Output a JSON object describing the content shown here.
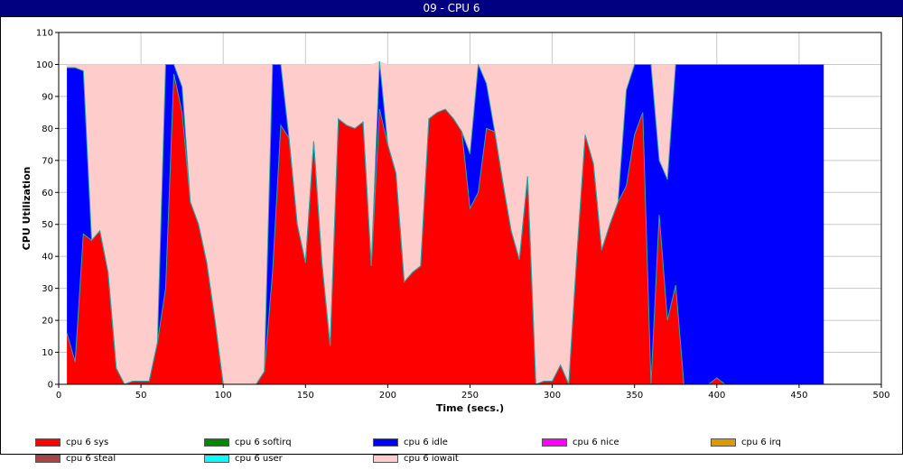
{
  "window": {
    "title": "09 - CPU 6"
  },
  "chart_data": {
    "type": "area",
    "stacked": true,
    "title": "",
    "xlabel": "Time (secs.)",
    "ylabel": "CPU Utilization",
    "xlim": [
      0,
      500
    ],
    "ylim": [
      0,
      110
    ],
    "xticks": [
      0,
      50,
      100,
      150,
      200,
      250,
      300,
      350,
      400,
      450,
      500
    ],
    "yticks": [
      0,
      10,
      20,
      30,
      40,
      50,
      60,
      70,
      80,
      90,
      100,
      110
    ],
    "grid": true,
    "x": [
      5,
      10,
      15,
      20,
      25,
      30,
      35,
      40,
      45,
      50,
      55,
      60,
      65,
      70,
      75,
      80,
      85,
      90,
      95,
      100,
      105,
      110,
      115,
      120,
      125,
      130,
      135,
      140,
      145,
      150,
      155,
      160,
      165,
      170,
      175,
      180,
      185,
      190,
      195,
      200,
      205,
      210,
      215,
      220,
      225,
      230,
      235,
      240,
      245,
      250,
      255,
      260,
      265,
      270,
      275,
      280,
      285,
      290,
      295,
      300,
      305,
      310,
      315,
      320,
      325,
      330,
      335,
      340,
      345,
      350,
      355,
      360,
      365,
      370,
      375,
      380,
      385,
      390,
      395,
      400,
      405,
      410,
      415,
      420,
      425,
      430,
      435,
      440,
      445,
      450,
      455,
      460,
      465
    ],
    "series": [
      {
        "name": "cpu 6 sys",
        "color": "#ff0000",
        "values": [
          16,
          7,
          47,
          45,
          48,
          35,
          5,
          0,
          1,
          1,
          1,
          13,
          30,
          97,
          85,
          57,
          50,
          38,
          20,
          0,
          0,
          0,
          0,
          0,
          4,
          35,
          81,
          77,
          50,
          38,
          76,
          38,
          12,
          83,
          81,
          80,
          82,
          37,
          86,
          75,
          66,
          32,
          35,
          37,
          83,
          85,
          86,
          83,
          79,
          55,
          60,
          80,
          79,
          63,
          48,
          39,
          65,
          0,
          1,
          1,
          6,
          0,
          41,
          78,
          69,
          42,
          50,
          57,
          62,
          78,
          85,
          0,
          53,
          20,
          31,
          0,
          0,
          0,
          0,
          2,
          0,
          0,
          0,
          0,
          0,
          0,
          0,
          0,
          0,
          0,
          0,
          0,
          0
        ]
      },
      {
        "name": "cpu 6 softirq",
        "color": "#008800",
        "values": [
          0,
          0,
          0,
          0,
          0,
          0,
          0,
          0,
          0,
          0,
          0,
          0,
          0,
          0,
          0,
          0,
          0,
          0,
          0,
          0,
          0,
          0,
          0,
          0,
          0,
          0,
          0,
          0,
          0,
          0,
          0,
          0,
          0,
          0,
          0,
          0,
          0,
          0,
          0,
          0,
          0,
          0,
          0,
          0,
          0,
          0,
          0,
          0,
          0,
          0,
          0,
          0,
          0,
          0,
          0,
          0,
          0,
          0,
          0,
          0,
          0,
          0,
          0,
          0,
          0,
          0,
          0,
          0,
          0,
          0,
          0,
          0,
          0,
          0,
          0,
          0,
          0,
          0,
          0,
          0,
          0,
          0,
          0,
          0,
          0,
          0,
          0,
          0,
          0,
          0,
          0,
          0,
          0
        ]
      },
      {
        "name": "cpu 6 idle",
        "color": "#0000ff",
        "values": [
          83,
          92,
          51,
          0,
          0,
          0,
          0,
          0,
          0,
          0,
          0,
          0,
          70,
          3,
          8,
          0,
          0,
          0,
          0,
          0,
          0,
          0,
          0,
          0,
          0,
          65,
          19,
          0,
          0,
          0,
          0,
          0,
          0,
          0,
          0,
          0,
          0,
          0,
          15,
          0,
          0,
          0,
          0,
          0,
          0,
          0,
          0,
          0,
          0,
          17,
          40,
          14,
          0,
          0,
          0,
          0,
          0,
          0,
          0,
          0,
          0,
          0,
          0,
          0,
          0,
          0,
          0,
          0,
          30,
          22,
          15,
          100,
          17,
          44,
          69,
          100,
          100,
          100,
          100,
          98,
          100,
          100,
          100,
          100,
          100,
          100,
          100,
          100,
          100,
          100,
          100,
          100,
          100
        ]
      },
      {
        "name": "cpu 6 nice",
        "color": "#ff00ff",
        "values": [
          0,
          0,
          0,
          0,
          0,
          0,
          0,
          0,
          0,
          0,
          0,
          0,
          0,
          0,
          0,
          0,
          0,
          0,
          0,
          0,
          0,
          0,
          0,
          0,
          0,
          0,
          0,
          0,
          0,
          0,
          0,
          0,
          0,
          0,
          0,
          0,
          0,
          0,
          0,
          0,
          0,
          0,
          0,
          0,
          0,
          0,
          0,
          0,
          0,
          0,
          0,
          0,
          0,
          0,
          0,
          0,
          0,
          0,
          0,
          0,
          0,
          0,
          0,
          0,
          0,
          0,
          0,
          0,
          0,
          0,
          0,
          0,
          0,
          0,
          0,
          0,
          0,
          0,
          0,
          0,
          0,
          0,
          0,
          0,
          0,
          0,
          0,
          0,
          0,
          0,
          0,
          0,
          0
        ]
      },
      {
        "name": "cpu 6 irq",
        "color": "#dd9900",
        "values": [
          0,
          0,
          0,
          0,
          0,
          0,
          0,
          0,
          0,
          0,
          0,
          0,
          0,
          0,
          0,
          0,
          0,
          0,
          0,
          0,
          0,
          0,
          0,
          0,
          0,
          0,
          0,
          0,
          0,
          0,
          0,
          0,
          0,
          0,
          0,
          0,
          0,
          0,
          0,
          0,
          0,
          0,
          0,
          0,
          0,
          0,
          0,
          0,
          0,
          0,
          0,
          0,
          0,
          0,
          0,
          0,
          0,
          0,
          0,
          0,
          0,
          0,
          0,
          0,
          0,
          0,
          0,
          0,
          0,
          0,
          0,
          0,
          0,
          0,
          0,
          0,
          0,
          0,
          0,
          0,
          0,
          0,
          0,
          0,
          0,
          0,
          0,
          0,
          0,
          0,
          0,
          0,
          0
        ]
      },
      {
        "name": "cpu 6 steal",
        "color": "#aa4444",
        "values": [
          0,
          0,
          0,
          0,
          0,
          0,
          0,
          0,
          0,
          0,
          0,
          0,
          0,
          0,
          0,
          0,
          0,
          0,
          0,
          0,
          0,
          0,
          0,
          0,
          0,
          0,
          0,
          0,
          0,
          0,
          0,
          0,
          0,
          0,
          0,
          0,
          0,
          0,
          0,
          0,
          0,
          0,
          0,
          0,
          0,
          0,
          0,
          0,
          0,
          0,
          0,
          0,
          0,
          0,
          0,
          0,
          0,
          0,
          0,
          0,
          0,
          0,
          0,
          0,
          0,
          0,
          0,
          0,
          0,
          0,
          0,
          0,
          0,
          0,
          0,
          0,
          0,
          0,
          0,
          0,
          0,
          0,
          0,
          0,
          0,
          0,
          0,
          0,
          0,
          0,
          0,
          0,
          0
        ]
      },
      {
        "name": "cpu 6 user",
        "color": "#00ffff",
        "values": [
          0,
          0,
          0,
          0,
          0,
          0,
          0,
          0,
          0,
          0,
          0,
          0,
          0,
          0,
          0,
          0,
          0,
          0,
          0,
          0,
          0,
          0,
          0,
          0,
          0,
          0,
          0,
          0,
          0,
          0,
          0,
          0,
          0,
          0,
          0,
          0,
          0,
          0,
          0,
          0,
          0,
          0,
          0,
          0,
          0,
          0,
          0,
          0,
          0,
          0,
          0,
          0,
          0,
          0,
          0,
          0,
          0,
          0,
          0,
          0,
          0,
          0,
          0,
          0,
          0,
          0,
          0,
          0,
          0,
          0,
          0,
          0,
          0,
          0,
          0,
          0,
          0,
          0,
          0,
          0,
          0,
          0,
          0,
          0,
          0,
          0,
          0,
          0,
          0,
          0,
          0,
          0,
          0
        ]
      },
      {
        "name": "cpu 6 iowait",
        "color": "#ffcccc",
        "values": [
          1,
          1,
          2,
          55,
          52,
          65,
          95,
          100,
          99,
          99,
          99,
          87,
          0,
          0,
          7,
          43,
          50,
          62,
          80,
          100,
          100,
          100,
          100,
          100,
          96,
          0,
          0,
          23,
          50,
          62,
          24,
          62,
          88,
          17,
          19,
          20,
          18,
          63,
          0,
          25,
          34,
          68,
          65,
          63,
          17,
          15,
          14,
          17,
          21,
          28,
          0,
          6,
          21,
          37,
          52,
          61,
          35,
          100,
          99,
          99,
          94,
          100,
          59,
          22,
          31,
          58,
          50,
          43,
          8,
          0,
          0,
          0,
          30,
          36,
          0,
          0,
          0,
          0,
          0,
          0,
          0,
          0,
          0,
          0,
          0,
          0,
          0,
          0,
          0,
          0,
          0,
          0,
          0
        ]
      }
    ],
    "legend": {
      "position": "bottom",
      "columns": 5
    }
  }
}
